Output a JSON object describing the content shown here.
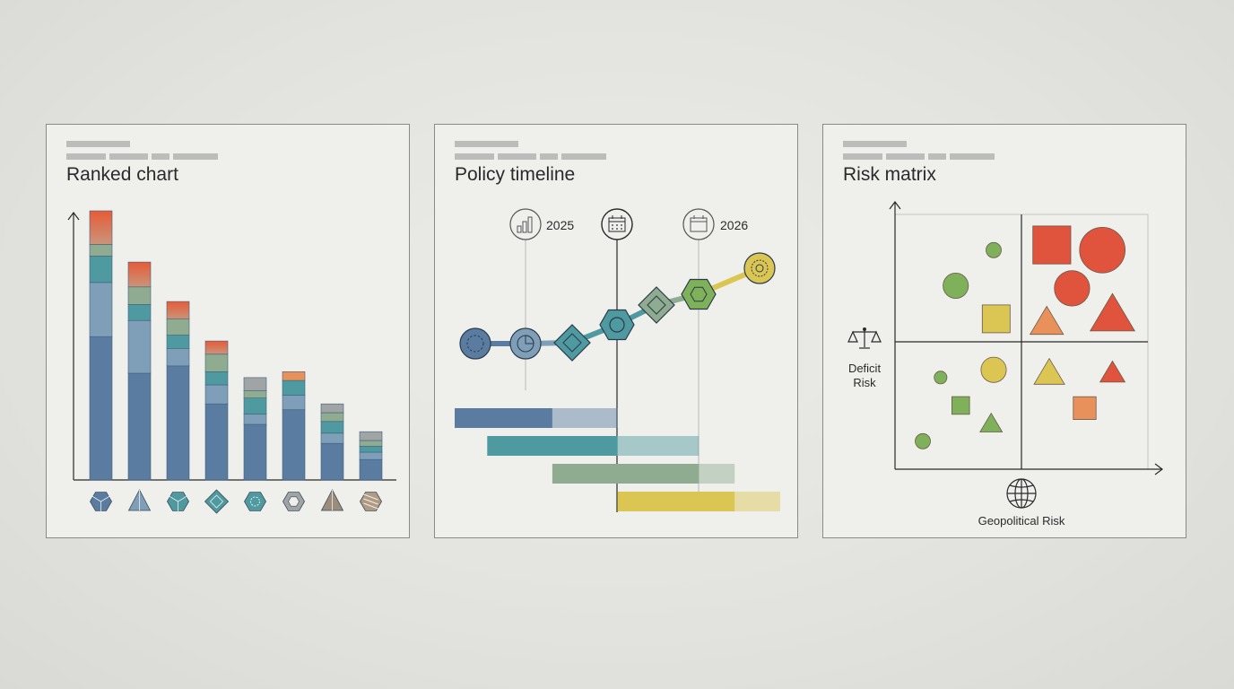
{
  "colors": {
    "navy": "#5a7ca0",
    "slate": "#7f9fb8",
    "teal": "#4e9aa0",
    "sage": "#8fac90",
    "green": "#7fb05a",
    "yellow": "#dcc653",
    "orange": "#e9915a",
    "red": "#e0533c",
    "grey": "#a0a4a4"
  },
  "panels": [
    {
      "title": "Ranked chart",
      "chart_data": {
        "type": "bar",
        "stacked": true,
        "bars": [
          {
            "icon": "cube-icon",
            "segments": [
              0.98,
              0.37,
              0.18,
              0.08,
              0.23
            ]
          },
          {
            "icon": "pyramid-icon",
            "segments": [
              0.73,
              0.36,
              0.11,
              0.12,
              0.17
            ]
          },
          {
            "icon": "hex-cube-icon",
            "segments": [
              0.78,
              0.12,
              0.09,
              0.11,
              0.12
            ]
          },
          {
            "icon": "diamond-icon",
            "segments": [
              0.52,
              0.13,
              0.09,
              0.12,
              0.09
            ]
          },
          {
            "icon": "hexagon-dot-icon",
            "segments": [
              0.38,
              0.07,
              0.11,
              0.05,
              0.09
            ]
          },
          {
            "icon": "hexagon-ring-icon",
            "segments": [
              0.48,
              0.1,
              0.1,
              0.0,
              0.06
            ]
          },
          {
            "icon": "tri-pyramid-icon",
            "segments": [
              0.25,
              0.07,
              0.08,
              0.06,
              0.06
            ]
          },
          {
            "icon": "striped-hex-icon",
            "segments": [
              0.14,
              0.05,
              0.04,
              0.04,
              0.06
            ]
          }
        ]
      }
    },
    {
      "title": "Policy timeline",
      "chart_data": {
        "type": "line",
        "markers": [
          {
            "label": "2025",
            "icon": "bar-chart-icon"
          },
          {
            "label": "",
            "icon": "calendar-icon"
          },
          {
            "label": "2026",
            "icon": "calendar-icon"
          }
        ],
        "nodes": [
          {
            "shape": "circle",
            "icon": "dashed-ring-icon",
            "color": "navy"
          },
          {
            "shape": "circle",
            "icon": "pie-icon",
            "color": "slate"
          },
          {
            "shape": "diamond",
            "icon": "diamond-icon",
            "color": "teal"
          },
          {
            "shape": "hexagon",
            "icon": "dot-icon",
            "color": "teal"
          },
          {
            "shape": "diamond",
            "icon": "diamond-icon",
            "color": "sage"
          },
          {
            "shape": "hexagon",
            "icon": "hexagon-icon",
            "color": "green"
          },
          {
            "shape": "circle",
            "icon": "globe-icon",
            "color": "yellow"
          }
        ],
        "gantt": [
          {
            "color": "navy",
            "start": 0.0,
            "solid_end": 0.3,
            "end": 0.5
          },
          {
            "color": "teal",
            "start": 0.1,
            "solid_end": 0.5,
            "end": 0.75
          },
          {
            "color": "sage",
            "start": 0.3,
            "solid_end": 0.75,
            "end": 0.86
          },
          {
            "color": "yellow",
            "start": 0.5,
            "solid_end": 0.86,
            "end": 1.0
          }
        ]
      }
    },
    {
      "title": "Risk matrix",
      "chart_data": {
        "type": "scatter",
        "xlabel": "Geopolitical Risk",
        "ylabel_line1": "Deficit",
        "ylabel_line2": "Risk",
        "points": [
          {
            "x": 0.39,
            "y": 0.86,
            "shape": "circle",
            "size": 0.06,
            "color": "green"
          },
          {
            "x": 0.24,
            "y": 0.72,
            "shape": "circle",
            "size": 0.1,
            "color": "green"
          },
          {
            "x": 0.4,
            "y": 0.59,
            "shape": "square",
            "size": 0.11,
            "color": "yellow"
          },
          {
            "x": 0.62,
            "y": 0.88,
            "shape": "square",
            "size": 0.15,
            "color": "red"
          },
          {
            "x": 0.82,
            "y": 0.86,
            "shape": "circle",
            "size": 0.18,
            "color": "red"
          },
          {
            "x": 0.7,
            "y": 0.71,
            "shape": "circle",
            "size": 0.14,
            "color": "red"
          },
          {
            "x": 0.6,
            "y": 0.58,
            "shape": "triangle",
            "size": 0.12,
            "color": "orange"
          },
          {
            "x": 0.86,
            "y": 0.61,
            "shape": "triangle",
            "size": 0.16,
            "color": "red"
          },
          {
            "x": 0.18,
            "y": 0.36,
            "shape": "circle",
            "size": 0.05,
            "color": "green"
          },
          {
            "x": 0.39,
            "y": 0.39,
            "shape": "circle",
            "size": 0.1,
            "color": "yellow"
          },
          {
            "x": 0.26,
            "y": 0.25,
            "shape": "square",
            "size": 0.07,
            "color": "green"
          },
          {
            "x": 0.38,
            "y": 0.18,
            "shape": "triangle",
            "size": 0.08,
            "color": "green"
          },
          {
            "x": 0.11,
            "y": 0.11,
            "shape": "circle",
            "size": 0.06,
            "color": "green"
          },
          {
            "x": 0.61,
            "y": 0.38,
            "shape": "triangle",
            "size": 0.11,
            "color": "yellow"
          },
          {
            "x": 0.86,
            "y": 0.38,
            "shape": "triangle",
            "size": 0.09,
            "color": "red"
          },
          {
            "x": 0.75,
            "y": 0.24,
            "shape": "square",
            "size": 0.09,
            "color": "orange"
          }
        ]
      }
    }
  ]
}
